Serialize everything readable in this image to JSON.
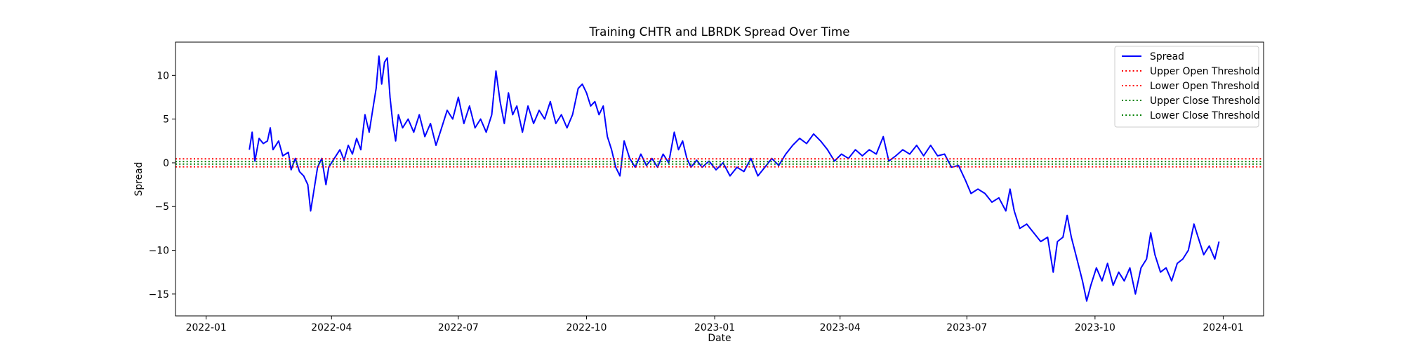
{
  "chart_data": {
    "type": "line",
    "title": "Training CHTR and LBRDK Spread Over Time",
    "xlabel": "Date",
    "ylabel": "Spread",
    "x_axis": {
      "kind": "date",
      "range": [
        "2021-12-10",
        "2024-01-30"
      ],
      "ticks": [
        {
          "date": "2022-01-01",
          "label": "2022-01"
        },
        {
          "date": "2022-04-01",
          "label": "2022-04"
        },
        {
          "date": "2022-07-01",
          "label": "2022-07"
        },
        {
          "date": "2022-10-01",
          "label": "2022-10"
        },
        {
          "date": "2023-01-01",
          "label": "2023-01"
        },
        {
          "date": "2023-04-01",
          "label": "2023-04"
        },
        {
          "date": "2023-07-01",
          "label": "2023-07"
        },
        {
          "date": "2023-10-01",
          "label": "2023-10"
        },
        {
          "date": "2024-01-01",
          "label": "2024-01"
        }
      ]
    },
    "y_axis": {
      "range": [
        -17.5,
        13.8
      ],
      "ticks": [
        {
          "value": -15,
          "label": "−15"
        },
        {
          "value": -10,
          "label": "−10"
        },
        {
          "value": -5,
          "label": "−5"
        },
        {
          "value": 0,
          "label": "0"
        },
        {
          "value": 5,
          "label": "5"
        },
        {
          "value": 10,
          "label": "10"
        }
      ]
    },
    "grid": false,
    "legend_position": "top-right",
    "series": [
      {
        "name": "Spread",
        "style": "solid",
        "color": "#0000ff",
        "points": [
          [
            "2022-02-01",
            1.5
          ],
          [
            "2022-02-03",
            3.5
          ],
          [
            "2022-02-05",
            0.2
          ],
          [
            "2022-02-08",
            2.8
          ],
          [
            "2022-02-11",
            2.2
          ],
          [
            "2022-02-14",
            2.5
          ],
          [
            "2022-02-16",
            4.0
          ],
          [
            "2022-02-18",
            1.5
          ],
          [
            "2022-02-22",
            2.5
          ],
          [
            "2022-02-25",
            0.8
          ],
          [
            "2022-03-01",
            1.2
          ],
          [
            "2022-03-03",
            -0.8
          ],
          [
            "2022-03-06",
            0.5
          ],
          [
            "2022-03-09",
            -1.0
          ],
          [
            "2022-03-12",
            -1.5
          ],
          [
            "2022-03-15",
            -2.5
          ],
          [
            "2022-03-17",
            -5.5
          ],
          [
            "2022-03-19",
            -3.5
          ],
          [
            "2022-03-22",
            -0.5
          ],
          [
            "2022-03-25",
            0.5
          ],
          [
            "2022-03-28",
            -2.5
          ],
          [
            "2022-03-30",
            -0.5
          ],
          [
            "2022-04-03",
            0.5
          ],
          [
            "2022-04-07",
            1.5
          ],
          [
            "2022-04-10",
            0.3
          ],
          [
            "2022-04-13",
            2.0
          ],
          [
            "2022-04-16",
            1.0
          ],
          [
            "2022-04-19",
            2.8
          ],
          [
            "2022-04-22",
            1.5
          ],
          [
            "2022-04-25",
            5.5
          ],
          [
            "2022-04-28",
            3.5
          ],
          [
            "2022-05-01",
            6.5
          ],
          [
            "2022-05-03",
            8.5
          ],
          [
            "2022-05-05",
            12.2
          ],
          [
            "2022-05-07",
            9.0
          ],
          [
            "2022-05-09",
            11.5
          ],
          [
            "2022-05-11",
            12.0
          ],
          [
            "2022-05-13",
            7.5
          ],
          [
            "2022-05-15",
            4.5
          ],
          [
            "2022-05-17",
            2.5
          ],
          [
            "2022-05-19",
            5.5
          ],
          [
            "2022-05-22",
            4.0
          ],
          [
            "2022-05-26",
            5.0
          ],
          [
            "2022-05-30",
            3.5
          ],
          [
            "2022-06-03",
            5.5
          ],
          [
            "2022-06-07",
            3.0
          ],
          [
            "2022-06-11",
            4.5
          ],
          [
            "2022-06-15",
            2.0
          ],
          [
            "2022-06-19",
            4.0
          ],
          [
            "2022-06-23",
            6.0
          ],
          [
            "2022-06-27",
            5.0
          ],
          [
            "2022-07-01",
            7.5
          ],
          [
            "2022-07-05",
            4.5
          ],
          [
            "2022-07-09",
            6.5
          ],
          [
            "2022-07-13",
            4.0
          ],
          [
            "2022-07-17",
            5.0
          ],
          [
            "2022-07-21",
            3.5
          ],
          [
            "2022-07-25",
            5.5
          ],
          [
            "2022-07-28",
            10.5
          ],
          [
            "2022-07-31",
            7.0
          ],
          [
            "2022-08-03",
            4.5
          ],
          [
            "2022-08-06",
            8.0
          ],
          [
            "2022-08-09",
            5.5
          ],
          [
            "2022-08-12",
            6.5
          ],
          [
            "2022-08-16",
            3.5
          ],
          [
            "2022-08-20",
            6.5
          ],
          [
            "2022-08-24",
            4.5
          ],
          [
            "2022-08-28",
            6.0
          ],
          [
            "2022-09-01",
            5.0
          ],
          [
            "2022-09-05",
            7.0
          ],
          [
            "2022-09-09",
            4.5
          ],
          [
            "2022-09-13",
            5.5
          ],
          [
            "2022-09-17",
            4.0
          ],
          [
            "2022-09-21",
            5.5
          ],
          [
            "2022-09-25",
            8.5
          ],
          [
            "2022-09-28",
            9.0
          ],
          [
            "2022-10-01",
            8.0
          ],
          [
            "2022-10-04",
            6.5
          ],
          [
            "2022-10-07",
            7.0
          ],
          [
            "2022-10-10",
            5.5
          ],
          [
            "2022-10-13",
            6.5
          ],
          [
            "2022-10-16",
            3.0
          ],
          [
            "2022-10-19",
            1.5
          ],
          [
            "2022-10-22",
            -0.5
          ],
          [
            "2022-10-25",
            -1.5
          ],
          [
            "2022-10-28",
            2.5
          ],
          [
            "2022-11-01",
            0.5
          ],
          [
            "2022-11-05",
            -0.5
          ],
          [
            "2022-11-09",
            1.0
          ],
          [
            "2022-11-13",
            -0.3
          ],
          [
            "2022-11-17",
            0.5
          ],
          [
            "2022-11-21",
            -0.5
          ],
          [
            "2022-11-25",
            1.0
          ],
          [
            "2022-11-29",
            0.0
          ],
          [
            "2022-12-03",
            3.5
          ],
          [
            "2022-12-06",
            1.5
          ],
          [
            "2022-12-09",
            2.5
          ],
          [
            "2022-12-12",
            0.5
          ],
          [
            "2022-12-15",
            -0.5
          ],
          [
            "2022-12-19",
            0.3
          ],
          [
            "2022-12-23",
            -0.5
          ],
          [
            "2022-12-28",
            0.2
          ],
          [
            "2023-01-02",
            -0.8
          ],
          [
            "2023-01-07",
            0.0
          ],
          [
            "2023-01-12",
            -1.5
          ],
          [
            "2023-01-17",
            -0.5
          ],
          [
            "2023-01-22",
            -1.0
          ],
          [
            "2023-01-27",
            0.5
          ],
          [
            "2023-02-01",
            -1.5
          ],
          [
            "2023-02-06",
            -0.5
          ],
          [
            "2023-02-11",
            0.5
          ],
          [
            "2023-02-16",
            -0.3
          ],
          [
            "2023-02-21",
            1.0
          ],
          [
            "2023-02-26",
            2.0
          ],
          [
            "2023-03-03",
            2.8
          ],
          [
            "2023-03-08",
            2.2
          ],
          [
            "2023-03-13",
            3.3
          ],
          [
            "2023-03-18",
            2.5
          ],
          [
            "2023-03-23",
            1.5
          ],
          [
            "2023-03-28",
            0.2
          ],
          [
            "2023-04-02",
            1.0
          ],
          [
            "2023-04-07",
            0.5
          ],
          [
            "2023-04-12",
            1.5
          ],
          [
            "2023-04-17",
            0.8
          ],
          [
            "2023-04-22",
            1.5
          ],
          [
            "2023-04-27",
            1.0
          ],
          [
            "2023-05-02",
            3.0
          ],
          [
            "2023-05-06",
            0.2
          ],
          [
            "2023-05-11",
            0.8
          ],
          [
            "2023-05-16",
            1.5
          ],
          [
            "2023-05-21",
            1.0
          ],
          [
            "2023-05-26",
            2.0
          ],
          [
            "2023-05-31",
            0.8
          ],
          [
            "2023-06-05",
            2.0
          ],
          [
            "2023-06-10",
            0.8
          ],
          [
            "2023-06-15",
            1.0
          ],
          [
            "2023-06-20",
            -0.5
          ],
          [
            "2023-06-25",
            -0.3
          ],
          [
            "2023-06-30",
            -2.0
          ],
          [
            "2023-07-04",
            -3.5
          ],
          [
            "2023-07-09",
            -3.0
          ],
          [
            "2023-07-14",
            -3.5
          ],
          [
            "2023-07-19",
            -4.5
          ],
          [
            "2023-07-24",
            -4.0
          ],
          [
            "2023-07-29",
            -5.5
          ],
          [
            "2023-08-01",
            -3.0
          ],
          [
            "2023-08-04",
            -5.5
          ],
          [
            "2023-08-08",
            -7.5
          ],
          [
            "2023-08-13",
            -7.0
          ],
          [
            "2023-08-18",
            -8.0
          ],
          [
            "2023-08-23",
            -9.0
          ],
          [
            "2023-08-28",
            -8.5
          ],
          [
            "2023-09-01",
            -12.5
          ],
          [
            "2023-09-04",
            -9.0
          ],
          [
            "2023-09-08",
            -8.5
          ],
          [
            "2023-09-11",
            -6.0
          ],
          [
            "2023-09-14",
            -8.5
          ],
          [
            "2023-09-18",
            -11.0
          ],
          [
            "2023-09-22",
            -13.5
          ],
          [
            "2023-09-25",
            -15.8
          ],
          [
            "2023-09-28",
            -14.0
          ],
          [
            "2023-10-02",
            -12.0
          ],
          [
            "2023-10-06",
            -13.5
          ],
          [
            "2023-10-10",
            -11.5
          ],
          [
            "2023-10-14",
            -14.0
          ],
          [
            "2023-10-18",
            -12.5
          ],
          [
            "2023-10-22",
            -13.5
          ],
          [
            "2023-10-26",
            -12.0
          ],
          [
            "2023-10-30",
            -15.0
          ],
          [
            "2023-11-03",
            -12.0
          ],
          [
            "2023-11-07",
            -11.0
          ],
          [
            "2023-11-10",
            -8.0
          ],
          [
            "2023-11-13",
            -10.5
          ],
          [
            "2023-11-17",
            -12.5
          ],
          [
            "2023-11-21",
            -12.0
          ],
          [
            "2023-11-25",
            -13.5
          ],
          [
            "2023-11-29",
            -11.5
          ],
          [
            "2023-12-03",
            -11.0
          ],
          [
            "2023-12-07",
            -10.0
          ],
          [
            "2023-12-11",
            -7.0
          ],
          [
            "2023-12-14",
            -8.5
          ],
          [
            "2023-12-18",
            -10.5
          ],
          [
            "2023-12-22",
            -9.5
          ],
          [
            "2023-12-26",
            -11.0
          ],
          [
            "2023-12-29",
            -9.0
          ]
        ]
      },
      {
        "name": "Upper Open Threshold",
        "style": "dotted",
        "color": "#ff0000",
        "y": 0.45
      },
      {
        "name": "Lower Open Threshold",
        "style": "dotted",
        "color": "#ff0000",
        "y": -0.45
      },
      {
        "name": "Upper Close Threshold",
        "style": "dotted",
        "color": "#008000",
        "y": 0.15
      },
      {
        "name": "Lower Close Threshold",
        "style": "dotted",
        "color": "#008000",
        "y": -0.15
      }
    ]
  }
}
